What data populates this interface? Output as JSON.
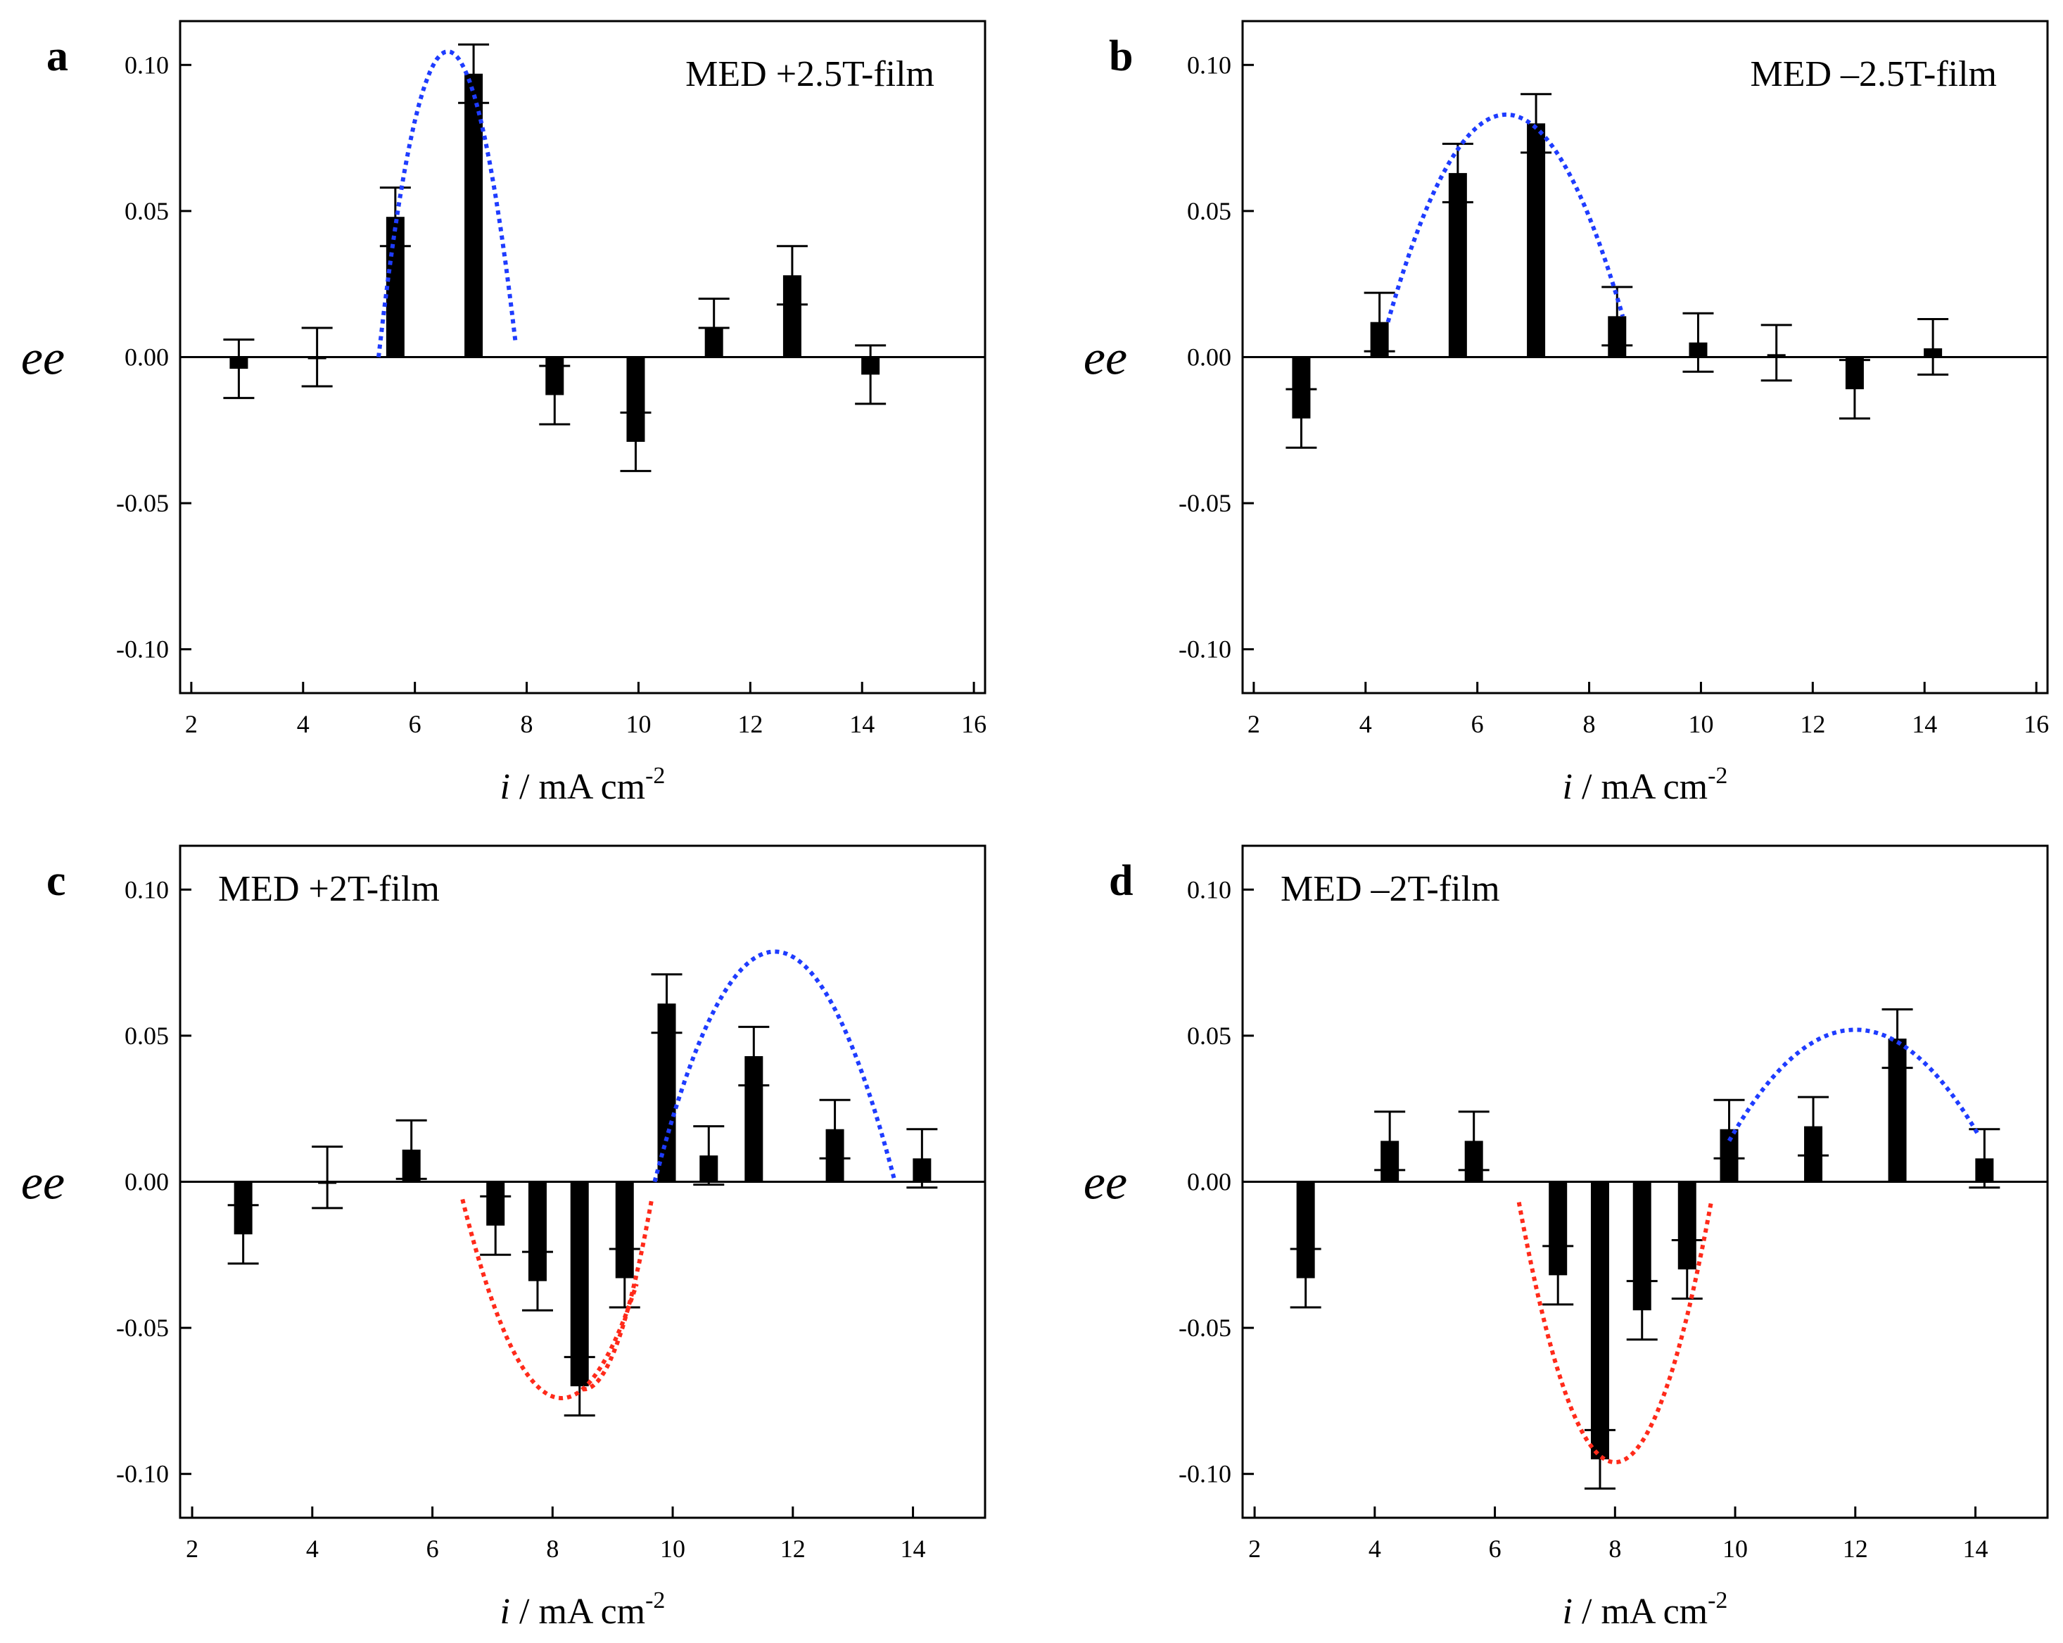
{
  "chart_data": [
    {
      "type": "bar",
      "panel_label": "a",
      "legend_text": "MED +2.5T-film",
      "ylabel": "ee",
      "xlabel_var": "i",
      "xlabel_units": " / mA cm",
      "xlabel_exp": "-2",
      "xlim": [
        1.8,
        16.2
      ],
      "ylim": [
        -0.115,
        0.115
      ],
      "xticks": [
        2,
        4,
        6,
        8,
        10,
        12,
        14,
        16
      ],
      "yticks": [
        0.1,
        0.05,
        0.0,
        -0.05,
        -0.1
      ],
      "ytick_labels": [
        "0.10",
        "0.05",
        "0.00",
        "-0.05",
        "-0.10"
      ],
      "bars": [
        {
          "x": 2.85,
          "value": -0.004,
          "err_low": -0.014,
          "err_high": 0.006
        },
        {
          "x": 4.25,
          "value": 0.0,
          "err_low": -0.01,
          "err_high": 0.01
        },
        {
          "x": 5.65,
          "value": 0.048,
          "err_low": 0.038,
          "err_high": 0.058
        },
        {
          "x": 7.05,
          "value": 0.097,
          "err_low": 0.087,
          "err_high": 0.107
        },
        {
          "x": 8.5,
          "value": -0.013,
          "err_low": -0.023,
          "err_high": -0.003
        },
        {
          "x": 9.95,
          "value": -0.029,
          "err_low": -0.039,
          "err_high": -0.019
        },
        {
          "x": 11.35,
          "value": 0.01,
          "err_low": 0.01,
          "err_high": 0.02
        },
        {
          "x": 12.75,
          "value": 0.028,
          "err_low": 0.018,
          "err_high": 0.038
        },
        {
          "x": 14.15,
          "value": -0.006,
          "err_low": -0.016,
          "err_high": 0.004
        }
      ],
      "fit_curves": [
        {
          "color": "#1e3cff",
          "shape": "quadratic",
          "points": [
            [
              5.35,
              0.0
            ],
            [
              6.85,
              0.1
            ],
            [
              7.8,
              0.005
            ]
          ]
        }
      ]
    },
    {
      "type": "bar",
      "panel_label": "b",
      "legend_text": "MED –2.5T-film",
      "ylabel": "ee",
      "xlabel_var": "i",
      "xlabel_units": " / mA cm",
      "xlabel_exp": "-2",
      "xlim": [
        1.8,
        16.2
      ],
      "ylim": [
        -0.115,
        0.115
      ],
      "xticks": [
        2,
        4,
        6,
        8,
        10,
        12,
        14,
        16
      ],
      "yticks": [
        0.1,
        0.05,
        0.0,
        -0.05,
        -0.1
      ],
      "ytick_labels": [
        "0.10",
        "0.05",
        "0.00",
        "-0.05",
        "-0.10"
      ],
      "bars": [
        {
          "x": 2.85,
          "value": -0.021,
          "err_low": -0.031,
          "err_high": -0.011
        },
        {
          "x": 4.25,
          "value": 0.012,
          "err_low": 0.002,
          "err_high": 0.022
        },
        {
          "x": 5.65,
          "value": 0.063,
          "err_low": 0.053,
          "err_high": 0.073
        },
        {
          "x": 7.05,
          "value": 0.08,
          "err_low": 0.07,
          "err_high": 0.09
        },
        {
          "x": 8.5,
          "value": 0.014,
          "err_low": 0.004,
          "err_high": 0.024
        },
        {
          "x": 9.95,
          "value": 0.005,
          "err_low": -0.005,
          "err_high": 0.015
        },
        {
          "x": 11.35,
          "value": 0.001,
          "err_low": -0.008,
          "err_high": 0.011
        },
        {
          "x": 12.75,
          "value": -0.011,
          "err_low": -0.021,
          "err_high": -0.001
        },
        {
          "x": 14.15,
          "value": 0.003,
          "err_low": -0.006,
          "err_high": 0.013
        }
      ],
      "fit_curves": [
        {
          "color": "#1e3cff",
          "shape": "quadratic",
          "points": [
            [
              4.4,
              0.012
            ],
            [
              6.5,
              0.083
            ],
            [
              8.6,
              0.014
            ]
          ]
        }
      ]
    },
    {
      "type": "bar",
      "panel_label": "c",
      "legend_text": "MED +2T-film",
      "ylabel": "ee",
      "xlabel_var": "i",
      "xlabel_units": " / mA cm",
      "xlabel_exp": "-2",
      "xlim": [
        1.8,
        15.2
      ],
      "ylim": [
        -0.115,
        0.115
      ],
      "xticks": [
        2,
        4,
        6,
        8,
        10,
        12,
        14
      ],
      "yticks": [
        0.1,
        0.05,
        0.0,
        -0.05,
        -0.1
      ],
      "ytick_labels": [
        "0.10",
        "0.05",
        "0.00",
        "-0.05",
        "-0.10"
      ],
      "bars": [
        {
          "x": 2.85,
          "value": -0.018,
          "err_low": -0.028,
          "err_high": -0.008
        },
        {
          "x": 4.25,
          "value": 0.0,
          "err_low": -0.009,
          "err_high": 0.012
        },
        {
          "x": 5.65,
          "value": 0.011,
          "err_low": 0.001,
          "err_high": 0.021
        },
        {
          "x": 7.05,
          "value": -0.015,
          "err_low": -0.025,
          "err_high": -0.005
        },
        {
          "x": 7.75,
          "value": -0.034,
          "err_low": -0.044,
          "err_high": -0.024
        },
        {
          "x": 8.45,
          "value": -0.07,
          "err_low": -0.08,
          "err_high": -0.06
        },
        {
          "x": 9.2,
          "value": -0.033,
          "err_low": -0.043,
          "err_high": -0.023
        },
        {
          "x": 9.9,
          "value": 0.061,
          "err_low": 0.051,
          "err_high": 0.071
        },
        {
          "x": 10.6,
          "value": 0.009,
          "err_low": -0.001,
          "err_high": 0.019
        },
        {
          "x": 11.35,
          "value": 0.043,
          "err_low": 0.033,
          "err_high": 0.053
        },
        {
          "x": 12.7,
          "value": 0.018,
          "err_low": 0.008,
          "err_high": 0.028
        },
        {
          "x": 14.15,
          "value": 0.008,
          "err_low": -0.002,
          "err_high": 0.018
        }
      ],
      "fit_curves": [
        {
          "color": "#ff2a1a",
          "shape": "quadratic",
          "points": [
            [
              6.5,
              -0.006
            ],
            [
              8.5,
              -0.071
            ],
            [
              9.4,
              -0.035
            ]
          ]
        },
        {
          "color": "#ff2a1a",
          "shape": "quadratic",
          "points": [
            [
              8.5,
              -0.071
            ],
            [
              9.3,
              -0.04
            ],
            [
              9.65,
              -0.006
            ]
          ]
        },
        {
          "color": "#1e3cff",
          "shape": "quadratic",
          "points": [
            [
              9.7,
              0.0
            ],
            [
              10.75,
              0.061
            ],
            [
              13.7,
              0.0
            ]
          ]
        }
      ]
    },
    {
      "type": "bar",
      "panel_label": "d",
      "legend_text": "MED –2T-film",
      "ylabel": "ee",
      "xlabel_var": "i",
      "xlabel_units": " / mA cm",
      "xlabel_exp": "-2",
      "xlim": [
        1.8,
        15.2
      ],
      "ylim": [
        -0.115,
        0.115
      ],
      "xticks": [
        2,
        4,
        6,
        8,
        10,
        12,
        14
      ],
      "yticks": [
        0.1,
        0.05,
        0.0,
        -0.05,
        -0.1
      ],
      "ytick_labels": [
        "0.10",
        "0.05",
        "0.00",
        "-0.05",
        "-0.10"
      ],
      "bars": [
        {
          "x": 2.85,
          "value": -0.033,
          "err_low": -0.043,
          "err_high": -0.023
        },
        {
          "x": 4.25,
          "value": 0.014,
          "err_low": 0.004,
          "err_high": 0.024
        },
        {
          "x": 5.65,
          "value": 0.014,
          "err_low": 0.004,
          "err_high": 0.024
        },
        {
          "x": 7.05,
          "value": -0.032,
          "err_low": -0.042,
          "err_high": -0.022
        },
        {
          "x": 7.75,
          "value": -0.095,
          "err_low": -0.105,
          "err_high": -0.085
        },
        {
          "x": 8.45,
          "value": -0.044,
          "err_low": -0.054,
          "err_high": -0.034
        },
        {
          "x": 9.2,
          "value": -0.03,
          "err_low": -0.04,
          "err_high": -0.02
        },
        {
          "x": 9.9,
          "value": 0.018,
          "err_low": 0.008,
          "err_high": 0.028
        },
        {
          "x": 11.3,
          "value": 0.019,
          "err_low": 0.009,
          "err_high": 0.029
        },
        {
          "x": 12.7,
          "value": 0.049,
          "err_low": 0.039,
          "err_high": 0.059
        },
        {
          "x": 14.15,
          "value": 0.008,
          "err_low": -0.002,
          "err_high": 0.018
        }
      ],
      "fit_curves": [
        {
          "color": "#ff2a1a",
          "shape": "quadratic",
          "points": [
            [
              6.4,
              -0.007
            ],
            [
              8.0,
              -0.096
            ],
            [
              9.6,
              -0.007
            ]
          ]
        },
        {
          "color": "#1e3cff",
          "shape": "quadratic",
          "points": [
            [
              9.9,
              0.014
            ],
            [
              12.35,
              0.051
            ],
            [
              14.05,
              0.016
            ]
          ]
        }
      ]
    }
  ]
}
